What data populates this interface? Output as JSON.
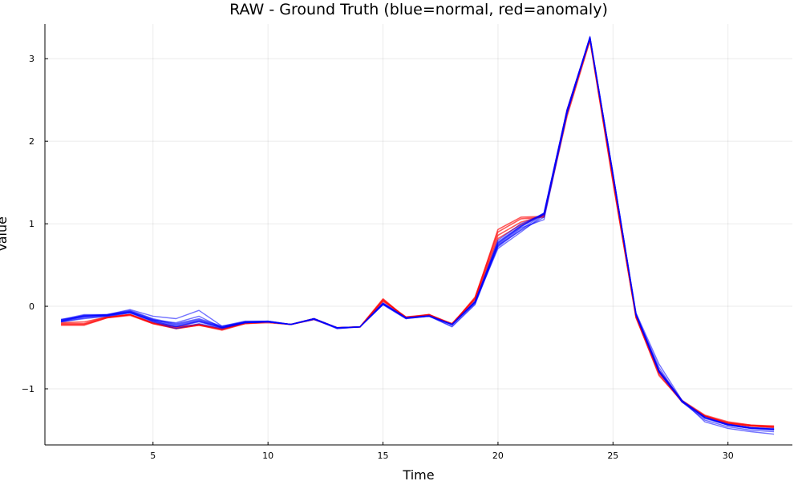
{
  "chart_data": {
    "type": "line",
    "title": "RAW - Ground Truth (blue=normal, red=anomaly)",
    "xlabel": "Time",
    "ylabel": "Value",
    "xlim": [
      0.3,
      32.8
    ],
    "ylim": [
      -1.68,
      3.42
    ],
    "xticks": [
      5,
      10,
      15,
      20,
      25,
      30
    ],
    "yticks": [
      -1,
      0,
      1,
      2,
      3
    ],
    "x": [
      1,
      2,
      3,
      4,
      5,
      6,
      7,
      8,
      9,
      10,
      11,
      12,
      13,
      14,
      15,
      16,
      17,
      18,
      19,
      20,
      21,
      22,
      23,
      24,
      25,
      26,
      27,
      28,
      29,
      30,
      31,
      32
    ],
    "grid": true,
    "legend": "none",
    "colors": {
      "normal": "#0000ff",
      "anomaly": "#ff0000"
    },
    "series": [
      {
        "group": "anomaly",
        "values": [
          -0.23,
          -0.23,
          -0.14,
          -0.11,
          -0.21,
          -0.27,
          -0.23,
          -0.28,
          -0.21,
          -0.2,
          -0.22,
          -0.16,
          -0.26,
          -0.25,
          0.09,
          -0.14,
          -0.1,
          -0.22,
          0.11,
          0.9,
          1.06,
          1.08,
          2.3,
          3.22,
          1.5,
          -0.13,
          -0.84,
          -1.15,
          -1.33,
          -1.42,
          -1.45,
          -1.46
        ]
      },
      {
        "group": "anomaly",
        "values": [
          -0.21,
          -0.21,
          -0.13,
          -0.1,
          -0.2,
          -0.26,
          -0.22,
          -0.28,
          -0.2,
          -0.19,
          -0.22,
          -0.15,
          -0.26,
          -0.25,
          0.07,
          -0.13,
          -0.11,
          -0.21,
          0.09,
          0.86,
          1.02,
          1.1,
          2.33,
          3.24,
          1.55,
          -0.12,
          -0.8,
          -1.15,
          -1.33,
          -1.41,
          -1.44,
          -1.46
        ]
      },
      {
        "group": "anomaly",
        "values": [
          -0.22,
          -0.22,
          -0.14,
          -0.1,
          -0.21,
          -0.27,
          -0.23,
          -0.29,
          -0.21,
          -0.19,
          -0.22,
          -0.16,
          -0.26,
          -0.25,
          0.08,
          -0.14,
          -0.1,
          -0.22,
          0.1,
          0.93,
          1.08,
          1.09,
          2.35,
          3.23,
          1.52,
          -0.14,
          -0.82,
          -1.16,
          -1.33,
          -1.42,
          -1.45,
          -1.47
        ]
      },
      {
        "group": "anomaly",
        "values": [
          -0.2,
          -0.19,
          -0.13,
          -0.1,
          -0.2,
          -0.25,
          -0.22,
          -0.27,
          -0.2,
          -0.19,
          -0.22,
          -0.15,
          -0.26,
          -0.25,
          0.06,
          -0.13,
          -0.1,
          -0.21,
          0.08,
          0.82,
          0.99,
          1.11,
          2.38,
          3.25,
          1.58,
          -0.11,
          -0.78,
          -1.14,
          -1.32,
          -1.4,
          -1.44,
          -1.45
        ]
      },
      {
        "group": "normal",
        "values": [
          -0.18,
          -0.12,
          -0.11,
          -0.07,
          -0.18,
          -0.25,
          -0.19,
          -0.26,
          -0.2,
          -0.19,
          -0.22,
          -0.15,
          -0.26,
          -0.25,
          0.03,
          -0.14,
          -0.12,
          -0.22,
          0.05,
          0.72,
          0.93,
          1.12,
          2.36,
          3.25,
          1.6,
          -0.1,
          -0.78,
          -1.15,
          -1.35,
          -1.43,
          -1.47,
          -1.49
        ]
      },
      {
        "group": "normal",
        "values": [
          -0.17,
          -0.11,
          -0.11,
          -0.06,
          -0.16,
          -0.23,
          -0.17,
          -0.25,
          -0.19,
          -0.19,
          -0.22,
          -0.15,
          -0.26,
          -0.25,
          0.04,
          -0.14,
          -0.12,
          -0.22,
          0.06,
          0.75,
          0.96,
          1.12,
          2.37,
          3.26,
          1.6,
          -0.1,
          -0.79,
          -1.15,
          -1.35,
          -1.44,
          -1.48,
          -1.49
        ]
      },
      {
        "group": "normal",
        "values": [
          -0.16,
          -0.1,
          -0.1,
          -0.05,
          -0.15,
          -0.21,
          -0.15,
          -0.24,
          -0.19,
          -0.18,
          -0.22,
          -0.15,
          -0.26,
          -0.25,
          0.03,
          -0.14,
          -0.12,
          -0.22,
          0.05,
          0.78,
          0.98,
          1.13,
          2.38,
          3.26,
          1.61,
          -0.09,
          -0.77,
          -1.14,
          -1.34,
          -1.43,
          -1.47,
          -1.48
        ]
      },
      {
        "group": "normal",
        "values": [
          -0.19,
          -0.14,
          -0.12,
          -0.08,
          -0.19,
          -0.27,
          -0.21,
          -0.27,
          -0.2,
          -0.19,
          -0.22,
          -0.16,
          -0.26,
          -0.25,
          0.02,
          -0.15,
          -0.12,
          -0.22,
          0.04,
          0.7,
          0.9,
          1.11,
          2.35,
          3.24,
          1.59,
          -0.11,
          -0.8,
          -1.16,
          -1.36,
          -1.44,
          -1.48,
          -1.5
        ]
      },
      {
        "group": "normal",
        "values": [
          -0.18,
          -0.13,
          -0.11,
          -0.07,
          -0.17,
          -0.24,
          -0.18,
          -0.26,
          -0.19,
          -0.19,
          -0.22,
          -0.15,
          -0.26,
          -0.25,
          0.03,
          -0.14,
          -0.12,
          -0.22,
          0.05,
          0.8,
          1.0,
          1.12,
          2.37,
          3.25,
          1.6,
          -0.1,
          -0.79,
          -1.15,
          -1.35,
          -1.43,
          -1.47,
          -1.49
        ]
      },
      {
        "group": "normal",
        "values": [
          -0.17,
          -0.11,
          -0.1,
          -0.06,
          -0.16,
          -0.22,
          -0.16,
          -0.25,
          -0.19,
          -0.18,
          -0.22,
          -0.15,
          -0.26,
          -0.25,
          0.04,
          -0.14,
          -0.11,
          -0.22,
          0.06,
          0.76,
          0.97,
          1.13,
          2.38,
          3.26,
          1.61,
          -0.09,
          -0.78,
          -1.15,
          -1.35,
          -1.44,
          -1.48,
          -1.49
        ]
      },
      {
        "group": "normal",
        "values": [
          -0.16,
          -0.12,
          -0.1,
          -0.04,
          -0.12,
          -0.15,
          -0.05,
          -0.24,
          -0.18,
          -0.18,
          -0.22,
          -0.15,
          -0.27,
          -0.25,
          0.02,
          -0.15,
          -0.12,
          -0.25,
          0.02,
          0.73,
          0.95,
          1.05,
          2.33,
          3.27,
          1.6,
          -0.08,
          -0.7,
          -1.14,
          -1.4,
          -1.48,
          -1.52,
          -1.55
        ]
      },
      {
        "group": "normal",
        "values": [
          -0.19,
          -0.15,
          -0.12,
          -0.08,
          -0.17,
          -0.2,
          -0.12,
          -0.26,
          -0.2,
          -0.19,
          -0.22,
          -0.16,
          -0.27,
          -0.25,
          0.03,
          -0.14,
          -0.12,
          -0.24,
          0.03,
          0.74,
          0.92,
          1.08,
          2.34,
          3.25,
          1.58,
          -0.1,
          -0.74,
          -1.16,
          -1.38,
          -1.46,
          -1.5,
          -1.52
        ]
      },
      {
        "group": "normal",
        "values": [
          -0.18,
          -0.12,
          -0.11,
          -0.07,
          -0.18,
          -0.25,
          -0.18,
          -0.26,
          -0.2,
          -0.19,
          -0.22,
          -0.15,
          -0.26,
          -0.25,
          0.03,
          -0.14,
          -0.12,
          -0.22,
          0.05,
          0.77,
          0.97,
          1.12,
          2.37,
          3.25,
          1.6,
          -0.1,
          -0.79,
          -1.15,
          -1.35,
          -1.43,
          -1.47,
          -1.49
        ]
      }
    ]
  }
}
